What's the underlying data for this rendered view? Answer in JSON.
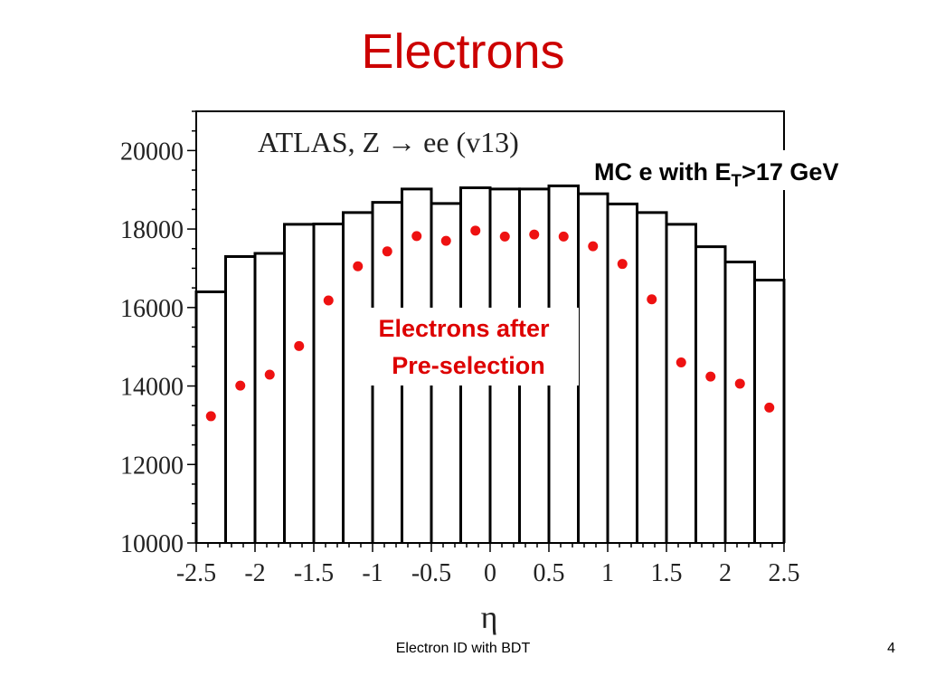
{
  "slide": {
    "title": "Electrons",
    "footer": "Electron ID with BDT",
    "page_number": "4"
  },
  "colors": {
    "title": "#cc0000",
    "points": "#ee1111",
    "annotation_red": "#dd0000",
    "bars": "#000000"
  },
  "chart_data": {
    "type": "bar",
    "title": "ATLAS, Z → ee (v13)",
    "xlabel": "η",
    "ylabel": "",
    "xlim": [
      -2.5,
      2.5
    ],
    "ylim": [
      10000,
      21000
    ],
    "x_ticks": [
      -2.5,
      -2,
      -1.5,
      -1,
      -0.5,
      0,
      0.5,
      1,
      1.5,
      2,
      2.5
    ],
    "x_tick_labels": [
      "-2.5",
      "-2",
      "-1.5",
      "-1",
      "-0.5",
      "0",
      "0.5",
      "1",
      "1.5",
      "2",
      "2.5"
    ],
    "y_ticks": [
      10000,
      12000,
      14000,
      16000,
      18000,
      20000
    ],
    "y_tick_labels": [
      "10000",
      "12000",
      "14000",
      "16000",
      "18000",
      "20000"
    ],
    "bin_edges": [
      -2.5,
      -2.25,
      -2.0,
      -1.75,
      -1.5,
      -1.25,
      -1.0,
      -0.75,
      -0.5,
      -0.25,
      0.0,
      0.25,
      0.5,
      0.75,
      1.0,
      1.25,
      1.5,
      1.75,
      2.0,
      2.25,
      2.5
    ],
    "series": [
      {
        "name": "MC e with E_T>17 GeV",
        "style": "histogram",
        "values": [
          16400,
          17300,
          17380,
          18120,
          18130,
          18420,
          18680,
          19020,
          18650,
          19050,
          19020,
          19020,
          19100,
          18900,
          18640,
          18420,
          18120,
          17550,
          17160,
          16700
        ]
      },
      {
        "name": "Electrons after Pre-selection",
        "style": "points",
        "x": [
          -2.375,
          -2.125,
          -1.875,
          -1.625,
          -1.375,
          -1.125,
          -0.875,
          -0.625,
          -0.375,
          -0.125,
          0.125,
          0.375,
          0.625,
          0.875,
          1.125,
          1.375,
          1.625,
          1.875,
          2.125,
          2.375
        ],
        "values": [
          13230,
          14010,
          14290,
          15020,
          16180,
          17050,
          17430,
          17820,
          17700,
          17960,
          17810,
          17860,
          17810,
          17560,
          17110,
          16210,
          14600,
          14240,
          14060,
          13450
        ]
      }
    ],
    "annotations": {
      "mc_label_prefix": "MC e with E",
      "mc_label_subscript": "T",
      "mc_label_suffix": ">17 GeV",
      "preselection_line1": "Electrons after",
      "preselection_line2": "Pre-selection"
    }
  }
}
